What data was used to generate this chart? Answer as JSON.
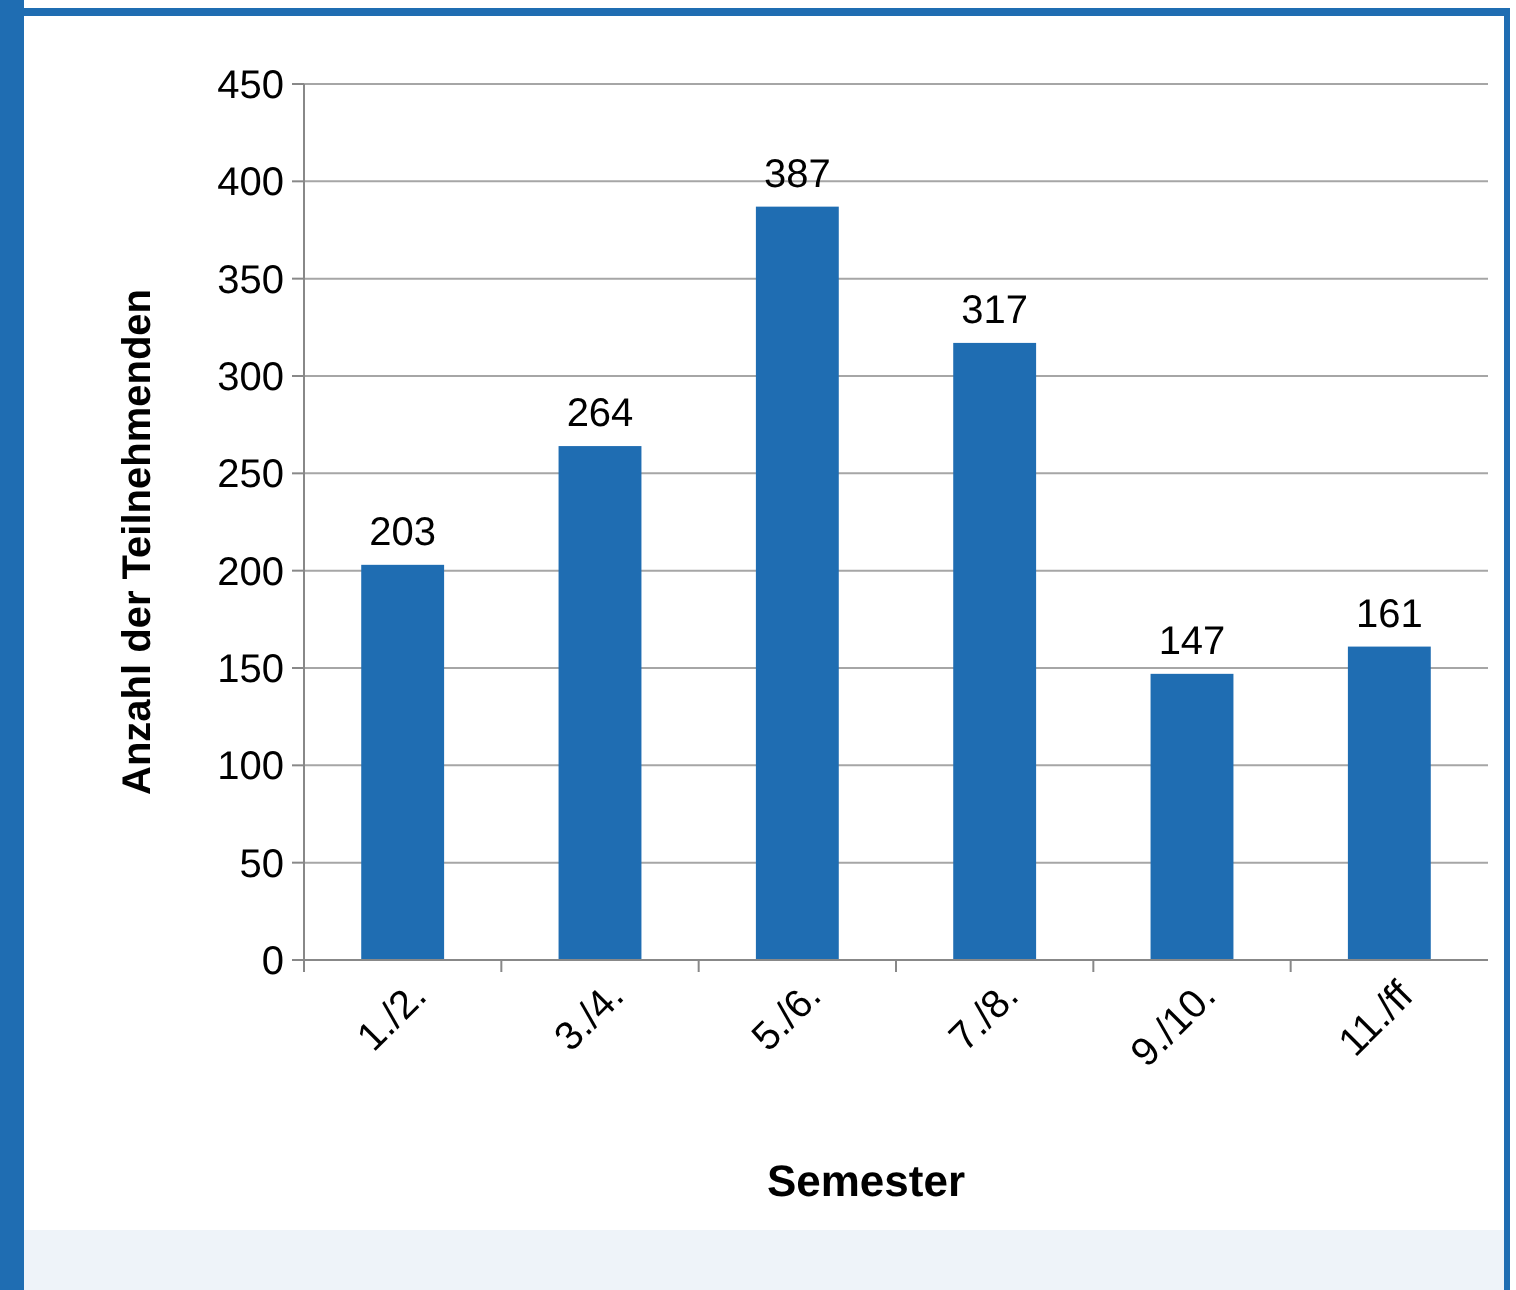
{
  "chart_data": {
    "type": "bar",
    "xlabel": "Semester",
    "ylabel": "Anzahl der Teilnehmenden",
    "categories": [
      "1./2.",
      "3./4.",
      "5./6.",
      "7./8.",
      "9./10.",
      "11./ff"
    ],
    "values": [
      203,
      264,
      387,
      317,
      147,
      161
    ],
    "color": "#1f6db2",
    "ylim": [
      0,
      450
    ],
    "yticks": [
      0,
      50,
      100,
      150,
      200,
      250,
      300,
      350,
      400,
      450
    ],
    "grid": "y",
    "data_labels": true
  }
}
